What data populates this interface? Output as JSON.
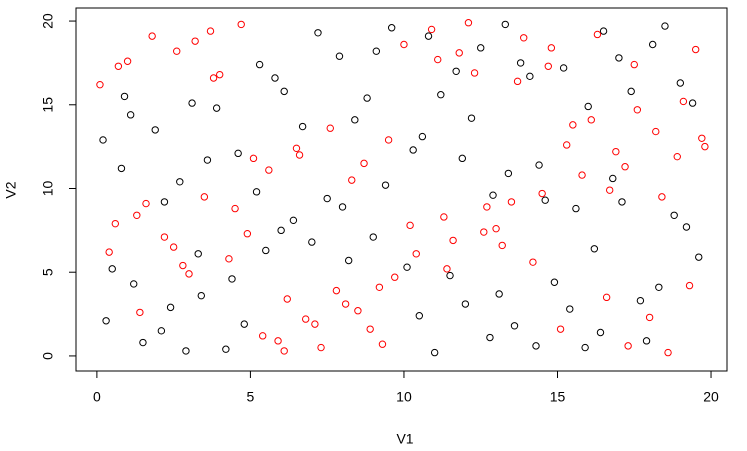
{
  "chart_data": {
    "type": "scatter",
    "xlabel": "V1",
    "ylabel": "V2",
    "xlim": [
      -0.68,
      20.52
    ],
    "ylim": [
      -0.9,
      20.78
    ],
    "xticks": [
      0,
      5,
      10,
      15,
      20
    ],
    "yticks": [
      0,
      5,
      10,
      15,
      20
    ],
    "series": [
      {
        "color": "#000000",
        "x": [
          0.3,
          1.2,
          2.1,
          3.4,
          4.2,
          0.8,
          1.9,
          2.7,
          3.9,
          4.6,
          0.5,
          1.5,
          2.4,
          3.1,
          4.4,
          0.2,
          1.1,
          2.9,
          3.6,
          4.8,
          5.3,
          6.1,
          7.2,
          8.4,
          9.1,
          5.8,
          6.7,
          7.9,
          8.8,
          9.6,
          5.5,
          6.4,
          7.5,
          8.2,
          9.4,
          6.0,
          7.0,
          8.0,
          9.0,
          5.2,
          10.3,
          11.2,
          12.5,
          13.4,
          14.1,
          10.8,
          11.9,
          12.2,
          13.8,
          14.6,
          10.5,
          11.5,
          12.8,
          13.1,
          14.3,
          10.1,
          11.0,
          12.0,
          13.6,
          14.9,
          15.4,
          16.2,
          17.1,
          18.3,
          19.2,
          15.9,
          16.8,
          17.7,
          18.8,
          19.6,
          15.2,
          16.5,
          17.4,
          18.1,
          19.0,
          16.0,
          17.0,
          18.5,
          19.4,
          15.6,
          10.6,
          11.7,
          12.9,
          13.3,
          14.4,
          0.9,
          2.2,
          3.3,
          16.4,
          17.9
        ],
        "values": [
          2.1,
          4.3,
          1.5,
          3.6,
          0.4,
          11.2,
          13.5,
          10.4,
          14.8,
          12.1,
          5.2,
          0.8,
          2.9,
          15.1,
          4.6,
          12.9,
          14.4,
          0.3,
          11.7,
          1.9,
          17.4,
          15.8,
          19.3,
          14.1,
          18.2,
          16.6,
          13.7,
          17.9,
          15.4,
          19.6,
          6.3,
          8.1,
          9.4,
          5.7,
          10.2,
          7.5,
          6.8,
          8.9,
          7.1,
          9.8,
          12.3,
          15.6,
          18.4,
          10.9,
          16.7,
          19.1,
          11.8,
          14.2,
          17.5,
          9.3,
          2.4,
          4.8,
          1.1,
          3.7,
          0.6,
          5.3,
          0.2,
          3.1,
          1.8,
          4.4,
          2.8,
          6.4,
          9.2,
          4.1,
          7.7,
          0.5,
          10.6,
          3.3,
          8.4,
          5.9,
          17.2,
          19.4,
          15.8,
          18.6,
          16.3,
          14.9,
          17.8,
          19.7,
          15.1,
          8.8,
          13.1,
          17.0,
          9.6,
          19.8,
          11.4,
          15.5,
          9.2,
          6.1,
          1.4,
          0.9
        ]
      },
      {
        "color": "#ff0000",
        "x": [
          0.4,
          1.3,
          2.2,
          3.5,
          4.3,
          0.7,
          1.8,
          2.6,
          3.8,
          4.7,
          0.6,
          1.6,
          2.5,
          3.2,
          4.5,
          0.1,
          1.0,
          2.8,
          3.7,
          4.9,
          5.4,
          6.2,
          7.3,
          8.5,
          9.2,
          5.9,
          6.8,
          7.8,
          8.9,
          9.7,
          5.6,
          6.5,
          7.6,
          8.3,
          9.5,
          6.1,
          7.1,
          8.1,
          9.3,
          5.1,
          10.4,
          11.3,
          12.6,
          13.5,
          14.2,
          10.9,
          11.8,
          12.3,
          13.9,
          14.7,
          10.2,
          11.4,
          12.7,
          13.2,
          14.5,
          10.0,
          11.1,
          12.1,
          13.7,
          14.8,
          15.3,
          16.1,
          17.2,
          18.2,
          19.1,
          15.8,
          16.9,
          17.6,
          18.9,
          19.7,
          15.1,
          16.6,
          17.3,
          18.0,
          19.3,
          16.3,
          17.5,
          18.6,
          19.8,
          15.5,
          1.4,
          3.0,
          6.6,
          8.7,
          11.6,
          13.0,
          16.7,
          18.4,
          19.5,
          4.0
        ],
        "values": [
          6.2,
          8.4,
          7.1,
          9.5,
          5.8,
          17.3,
          19.1,
          18.2,
          16.6,
          19.8,
          7.9,
          9.1,
          6.5,
          18.8,
          8.8,
          16.2,
          17.6,
          5.4,
          19.4,
          7.3,
          1.2,
          3.4,
          0.5,
          2.7,
          4.1,
          0.9,
          2.2,
          3.9,
          1.6,
          4.7,
          11.1,
          12.4,
          13.6,
          10.5,
          12.9,
          0.3,
          1.9,
          3.1,
          0.7,
          11.8,
          6.1,
          8.3,
          7.4,
          9.2,
          5.6,
          19.5,
          18.1,
          16.9,
          19.0,
          17.3,
          7.8,
          5.2,
          8.9,
          6.6,
          9.7,
          18.6,
          17.7,
          19.9,
          16.4,
          18.4,
          12.6,
          14.1,
          11.3,
          13.4,
          15.2,
          10.8,
          12.2,
          14.7,
          11.9,
          13.0,
          1.6,
          3.5,
          0.6,
          2.3,
          4.2,
          19.2,
          17.4,
          0.2,
          12.5,
          13.8,
          2.6,
          4.9,
          12.0,
          11.5,
          6.9,
          7.6,
          9.9,
          9.5,
          18.3,
          16.8
        ]
      }
    ]
  }
}
